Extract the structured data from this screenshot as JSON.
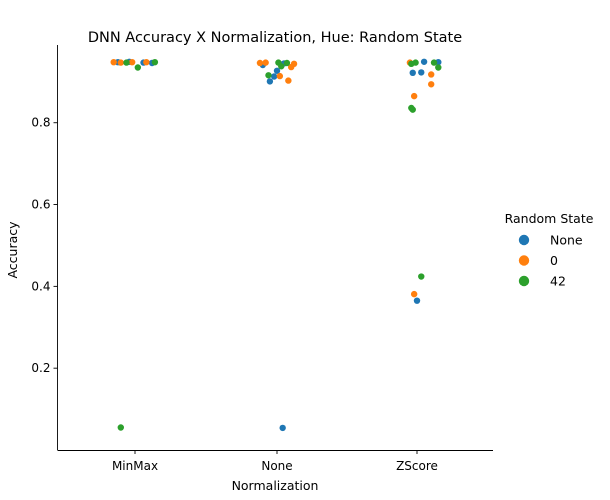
{
  "chart_data": {
    "type": "scatter",
    "title": "DNN Accuracy X Normalization, Hue: Random State",
    "xlabel": "Normalization",
    "ylabel": "Accuracy",
    "categories": [
      "MinMax",
      "None",
      "ZScore"
    ],
    "ylim": [
      0.0,
      0.99
    ],
    "yticks": [
      "0.2",
      "0.4",
      "0.6",
      "0.8"
    ],
    "grid": false,
    "legend": {
      "title": "Random State",
      "placement": "right"
    },
    "series": [
      {
        "name": "None",
        "color": "#1f77b4",
        "points": [
          {
            "category": "MinMax",
            "jitter": -0.12,
            "y": 0.948
          },
          {
            "category": "MinMax",
            "jitter": -0.04,
            "y": 0.949
          },
          {
            "category": "MinMax",
            "jitter": 0.06,
            "y": 0.947
          },
          {
            "category": "MinMax",
            "jitter": 0.12,
            "y": 0.946
          },
          {
            "category": "None",
            "jitter": -0.1,
            "y": 0.941
          },
          {
            "category": "None",
            "jitter": -0.05,
            "y": 0.901
          },
          {
            "category": "None",
            "jitter": -0.02,
            "y": 0.913
          },
          {
            "category": "None",
            "jitter": 0.0,
            "y": 0.927
          },
          {
            "category": "None",
            "jitter": 0.05,
            "y": 0.945
          },
          {
            "category": "None",
            "jitter": 0.04,
            "y": 0.054
          },
          {
            "category": "ZScore",
            "jitter": -0.03,
            "y": 0.922
          },
          {
            "category": "ZScore",
            "jitter": 0.03,
            "y": 0.923
          },
          {
            "category": "ZScore",
            "jitter": 0.05,
            "y": 0.949
          },
          {
            "category": "ZScore",
            "jitter": 0.15,
            "y": 0.948
          },
          {
            "category": "ZScore",
            "jitter": 0.0,
            "y": 0.365
          }
        ]
      },
      {
        "name": "0",
        "color": "#ff7f0e",
        "points": [
          {
            "category": "MinMax",
            "jitter": -0.15,
            "y": 0.948
          },
          {
            "category": "MinMax",
            "jitter": -0.1,
            "y": 0.947
          },
          {
            "category": "MinMax",
            "jitter": -0.02,
            "y": 0.948
          },
          {
            "category": "MinMax",
            "jitter": 0.08,
            "y": 0.948
          },
          {
            "category": "None",
            "jitter": -0.12,
            "y": 0.946
          },
          {
            "category": "None",
            "jitter": -0.08,
            "y": 0.947
          },
          {
            "category": "None",
            "jitter": 0.02,
            "y": 0.914
          },
          {
            "category": "None",
            "jitter": 0.08,
            "y": 0.903
          },
          {
            "category": "None",
            "jitter": 0.1,
            "y": 0.936
          },
          {
            "category": "None",
            "jitter": 0.12,
            "y": 0.944
          },
          {
            "category": "ZScore",
            "jitter": -0.05,
            "y": 0.947
          },
          {
            "category": "ZScore",
            "jitter": -0.02,
            "y": 0.865
          },
          {
            "category": "ZScore",
            "jitter": 0.1,
            "y": 0.894
          },
          {
            "category": "ZScore",
            "jitter": 0.1,
            "y": 0.918
          },
          {
            "category": "ZScore",
            "jitter": -0.02,
            "y": 0.381
          }
        ]
      },
      {
        "name": "42",
        "color": "#2ca02c",
        "points": [
          {
            "category": "MinMax",
            "jitter": -0.06,
            "y": 0.947
          },
          {
            "category": "MinMax",
            "jitter": 0.02,
            "y": 0.935
          },
          {
            "category": "MinMax",
            "jitter": 0.14,
            "y": 0.948
          },
          {
            "category": "MinMax",
            "jitter": -0.1,
            "y": 0.055
          },
          {
            "category": "None",
            "jitter": -0.06,
            "y": 0.916
          },
          {
            "category": "None",
            "jitter": 0.01,
            "y": 0.947
          },
          {
            "category": "None",
            "jitter": 0.03,
            "y": 0.938
          },
          {
            "category": "None",
            "jitter": 0.07,
            "y": 0.946
          },
          {
            "category": "ZScore",
            "jitter": -0.04,
            "y": 0.944
          },
          {
            "category": "ZScore",
            "jitter": -0.04,
            "y": 0.836
          },
          {
            "category": "ZScore",
            "jitter": -0.03,
            "y": 0.832
          },
          {
            "category": "ZScore",
            "jitter": -0.01,
            "y": 0.947
          },
          {
            "category": "ZScore",
            "jitter": 0.12,
            "y": 0.947
          },
          {
            "category": "ZScore",
            "jitter": 0.15,
            "y": 0.935
          },
          {
            "category": "ZScore",
            "jitter": 0.03,
            "y": 0.424
          }
        ]
      }
    ]
  }
}
